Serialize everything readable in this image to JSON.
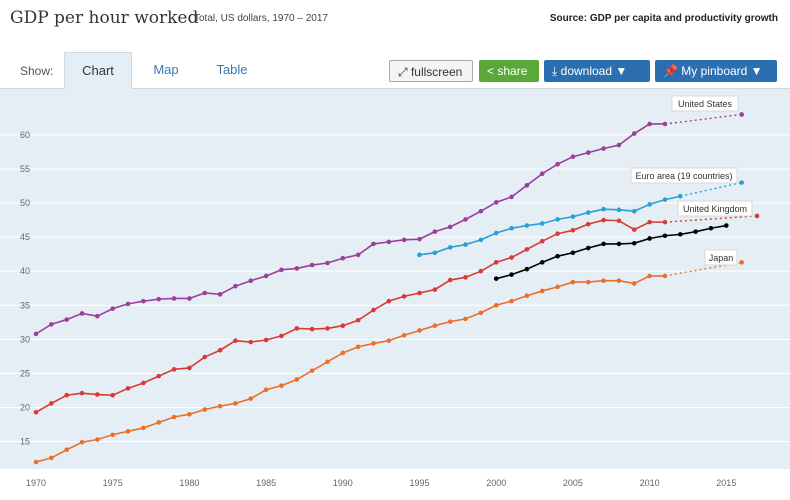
{
  "header": {
    "title": "GDP per hour worked",
    "subtitle": "Total, US dollars, 1970 – 2017",
    "source": "Source: GDP per capita and productivity growth"
  },
  "toolbar": {
    "show_label": "Show:",
    "tabs": [
      {
        "label": "Chart",
        "active": true
      },
      {
        "label": "Map",
        "active": false
      },
      {
        "label": "Table",
        "active": false
      }
    ],
    "fullscreen_label": "fullscreen",
    "share_label": "share",
    "download_label": "download ▼",
    "pinboard_label": "My pinboard ▼"
  },
  "colors": {
    "background": "#e6eef5",
    "share_button": "#5aa83a",
    "primary_button": "#2c6fb0"
  },
  "chart_data": {
    "type": "line",
    "title": "GDP per hour worked",
    "xlabel": "",
    "ylabel": "",
    "xlim": [
      1970,
      2017
    ],
    "ylim": [
      12,
      66
    ],
    "xticks": [
      1970,
      1975,
      1980,
      1985,
      1990,
      1995,
      2000,
      2005,
      2010,
      2015
    ],
    "yticks": [
      15,
      20,
      25,
      30,
      35,
      40,
      45,
      50,
      55,
      60
    ],
    "grid": true,
    "series": [
      {
        "name": "United States",
        "color": "#9b3f9c",
        "x": [
          1970,
          1971,
          1972,
          1973,
          1974,
          1975,
          1976,
          1977,
          1978,
          1979,
          1980,
          1981,
          1982,
          1983,
          1984,
          1985,
          1986,
          1987,
          1988,
          1989,
          1990,
          1991,
          1992,
          1993,
          1994,
          1995,
          1996,
          1997,
          1998,
          1999,
          2000,
          2001,
          2002,
          2003,
          2004,
          2005,
          2006,
          2007,
          2008,
          2009,
          2010,
          2011,
          2016
        ],
        "values": [
          30.8,
          32.2,
          32.9,
          33.8,
          33.4,
          34.5,
          35.2,
          35.6,
          35.9,
          36.0,
          36.0,
          36.8,
          36.6,
          37.8,
          38.6,
          39.3,
          40.2,
          40.4,
          40.9,
          41.2,
          41.9,
          42.4,
          44.0,
          44.3,
          44.6,
          44.7,
          45.8,
          46.5,
          47.6,
          48.8,
          50.1,
          50.9,
          52.6,
          54.3,
          55.7,
          56.8,
          57.4,
          58.0,
          58.5,
          60.2,
          61.6,
          61.6,
          63.0
        ]
      },
      {
        "name": "Euro area (19 countries)",
        "color": "#2a9fd6",
        "x": [
          1995,
          1996,
          1997,
          1998,
          1999,
          2000,
          2001,
          2002,
          2003,
          2004,
          2005,
          2006,
          2007,
          2008,
          2009,
          2010,
          2011,
          2012,
          2016
        ],
        "values": [
          42.4,
          42.7,
          43.5,
          43.9,
          44.6,
          45.6,
          46.3,
          46.7,
          47.0,
          47.6,
          48.0,
          48.6,
          49.1,
          49.0,
          48.8,
          49.8,
          50.5,
          51.0,
          53.0
        ]
      },
      {
        "name": "United Kingdom",
        "color": "#d63b36",
        "x": [
          1970,
          1971,
          1972,
          1973,
          1974,
          1975,
          1976,
          1977,
          1978,
          1979,
          1980,
          1981,
          1982,
          1983,
          1984,
          1985,
          1986,
          1987,
          1988,
          1989,
          1990,
          1991,
          1992,
          1993,
          1994,
          1995,
          1996,
          1997,
          1998,
          1999,
          2000,
          2001,
          2002,
          2003,
          2004,
          2005,
          2006,
          2007,
          2008,
          2009,
          2010,
          2011,
          2017
        ],
        "values": [
          19.3,
          20.6,
          21.8,
          22.1,
          21.9,
          21.8,
          22.8,
          23.6,
          24.6,
          25.6,
          25.8,
          27.4,
          28.4,
          29.8,
          29.6,
          29.9,
          30.5,
          31.6,
          31.5,
          31.6,
          32.0,
          32.8,
          34.3,
          35.6,
          36.3,
          36.8,
          37.3,
          38.7,
          39.1,
          40.0,
          41.3,
          42.0,
          43.2,
          44.4,
          45.5,
          46.0,
          46.9,
          47.5,
          47.4,
          46.1,
          47.2,
          47.2,
          48.1
        ]
      },
      {
        "name": "Japan",
        "color": "#e8702a",
        "x": [
          1970,
          1971,
          1972,
          1973,
          1974,
          1975,
          1976,
          1977,
          1978,
          1979,
          1980,
          1981,
          1982,
          1983,
          1984,
          1985,
          1986,
          1987,
          1988,
          1989,
          1990,
          1991,
          1992,
          1993,
          1994,
          1995,
          1996,
          1997,
          1998,
          1999,
          2000,
          2001,
          2002,
          2003,
          2004,
          2005,
          2006,
          2007,
          2008,
          2009,
          2010,
          2011,
          2016
        ],
        "values": [
          12.0,
          12.6,
          13.8,
          14.9,
          15.3,
          16.0,
          16.5,
          17.0,
          17.8,
          18.6,
          19.0,
          19.7,
          20.2,
          20.6,
          21.3,
          22.6,
          23.2,
          24.1,
          25.4,
          26.7,
          28.0,
          28.9,
          29.4,
          29.8,
          30.6,
          31.3,
          32.0,
          32.6,
          33.0,
          33.9,
          35.0,
          35.6,
          36.4,
          37.1,
          37.7,
          38.4,
          38.4,
          38.6,
          38.6,
          38.2,
          39.3,
          39.3,
          41.3
        ]
      },
      {
        "name": "",
        "color": "#000000",
        "x": [
          2000,
          2001,
          2002,
          2003,
          2004,
          2005,
          2006,
          2007,
          2008,
          2009,
          2010,
          2011,
          2012,
          2013,
          2014,
          2015
        ],
        "values": [
          38.9,
          39.5,
          40.3,
          41.3,
          42.2,
          42.7,
          43.4,
          44.0,
          44.0,
          44.1,
          44.8,
          45.2,
          45.4,
          45.8,
          46.3,
          46.7
        ]
      }
    ],
    "labels": [
      {
        "text": "United States",
        "series": 0
      },
      {
        "text": "Euro area (19 countries)",
        "series": 1
      },
      {
        "text": "United Kingdom",
        "series": 2
      },
      {
        "text": "Japan",
        "series": 3
      }
    ]
  }
}
